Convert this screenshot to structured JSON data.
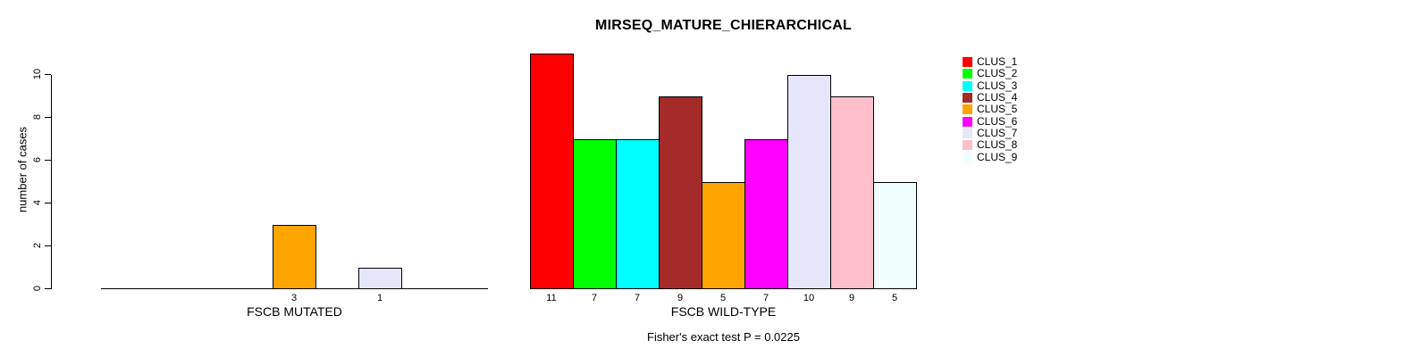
{
  "title": "MIRSEQ_MATURE_CHIERARCHICAL",
  "footer": "Fisher's exact test P = 0.0225",
  "chart_data": {
    "type": "bar",
    "title": "MIRSEQ_MATURE_CHIERARCHICAL",
    "ylabel": "number of cases",
    "xlabel": "",
    "ylim": [
      0,
      10
    ],
    "y_ticks": [
      "0",
      "2",
      "4",
      "6",
      "8",
      "10"
    ],
    "grid": false,
    "legend_position": "right",
    "categories": [
      "CLUS_1",
      "CLUS_2",
      "CLUS_3",
      "CLUS_4",
      "CLUS_5",
      "CLUS_6",
      "CLUS_7",
      "CLUS_8",
      "CLUS_9"
    ],
    "colors": [
      "#FF0000",
      "#00FF00",
      "#00FFFF",
      "#A52A2A",
      "#FFA500",
      "#FF00FF",
      "#E6E6FA",
      "#FFC0CB",
      "#F0FFFF"
    ],
    "series": [
      {
        "name": "FSCB MUTATED",
        "values": [
          0,
          0,
          0,
          0,
          3,
          0,
          1,
          0,
          0
        ]
      },
      {
        "name": "FSCB WILD-TYPE",
        "values": [
          11,
          7,
          7,
          9,
          5,
          7,
          10,
          9,
          5
        ]
      }
    ],
    "bar_value_labels_shown_only_when_nonzero": true,
    "annotation": "Fisher's exact test P = 0.0225"
  },
  "legend": {
    "items": [
      {
        "label": "CLUS_1",
        "color": "#FF0000"
      },
      {
        "label": "CLUS_2",
        "color": "#00FF00"
      },
      {
        "label": "CLUS_3",
        "color": "#00FFFF"
      },
      {
        "label": "CLUS_4",
        "color": "#A52A2A"
      },
      {
        "label": "CLUS_5",
        "color": "#FFA500"
      },
      {
        "label": "CLUS_6",
        "color": "#FF00FF"
      },
      {
        "label": "CLUS_7",
        "color": "#E6E6FA"
      },
      {
        "label": "CLUS_8",
        "color": "#FFC0CB"
      },
      {
        "label": "CLUS_9",
        "color": "#F0FFFF"
      }
    ]
  }
}
